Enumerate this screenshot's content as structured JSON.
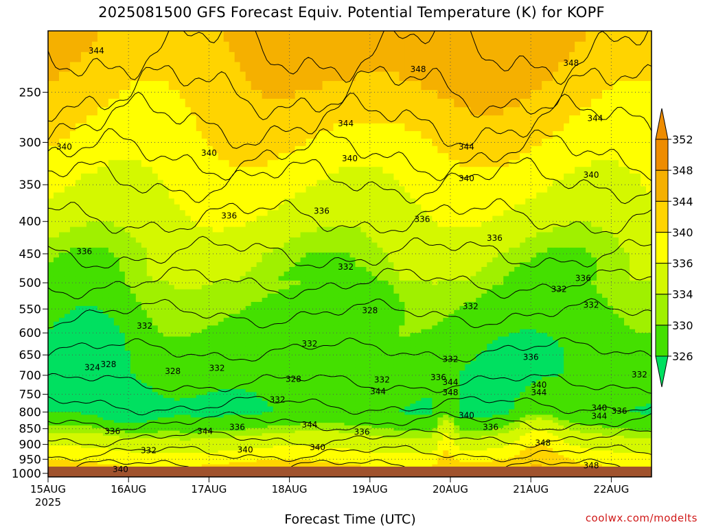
{
  "title": "2025081500 GFS Forecast Equiv. Potential Temperature (K) for KOPF",
  "credit": "coolwx.com/modelts",
  "chart_data": {
    "type": "heatmap",
    "title": "2025081500 GFS Forecast Equiv. Potential Temperature (K) for KOPF",
    "xlabel": "Forecast Time (UTC)",
    "ylabel": "",
    "x_ticks": [
      "15AUG",
      "16AUG",
      "17AUG",
      "18AUG",
      "19AUG",
      "20AUG",
      "21AUG",
      "22AUG"
    ],
    "x_year_label": "2025",
    "y_ticks": [
      250,
      300,
      350,
      400,
      450,
      500,
      550,
      600,
      650,
      700,
      750,
      800,
      850,
      900,
      950,
      1000
    ],
    "y_range_hPa": [
      200,
      1013
    ],
    "x_range_days": [
      0,
      7.5
    ],
    "grid": true,
    "colorbar": {
      "levels": [
        326,
        330,
        334,
        336,
        340,
        344,
        348,
        352
      ],
      "colors": [
        "#00e060",
        "#44e000",
        "#a0f000",
        "#d4f800",
        "#ffff00",
        "#ffd400",
        "#f5b000",
        "#ee8c00"
      ],
      "extend": "both"
    },
    "contour_labels": [
      {
        "text": "344",
        "t": 0.6,
        "p": 215
      },
      {
        "text": "348",
        "t": 4.6,
        "p": 230
      },
      {
        "text": "348",
        "t": 6.5,
        "p": 225
      },
      {
        "text": "344",
        "t": 3.7,
        "p": 280
      },
      {
        "text": "344",
        "t": 6.8,
        "p": 275
      },
      {
        "text": "344",
        "t": 5.2,
        "p": 305
      },
      {
        "text": "340",
        "t": 0.2,
        "p": 305
      },
      {
        "text": "340",
        "t": 2.0,
        "p": 312
      },
      {
        "text": "340",
        "t": 3.75,
        "p": 318
      },
      {
        "text": "340",
        "t": 5.2,
        "p": 342
      },
      {
        "text": "340",
        "t": 6.75,
        "p": 338
      },
      {
        "text": "336",
        "t": 2.25,
        "p": 392
      },
      {
        "text": "336",
        "t": 3.4,
        "p": 385
      },
      {
        "text": "336",
        "t": 4.65,
        "p": 397
      },
      {
        "text": "336",
        "t": 5.55,
        "p": 425
      },
      {
        "text": "336",
        "t": 0.45,
        "p": 446
      },
      {
        "text": "336",
        "t": 6.65,
        "p": 492
      },
      {
        "text": "332",
        "t": 3.7,
        "p": 472
      },
      {
        "text": "332",
        "t": 6.35,
        "p": 512
      },
      {
        "text": "332",
        "t": 6.75,
        "p": 542
      },
      {
        "text": "332",
        "t": 5.25,
        "p": 545
      },
      {
        "text": "332",
        "t": 1.2,
        "p": 585
      },
      {
        "text": "332",
        "t": 3.25,
        "p": 624
      },
      {
        "text": "332",
        "t": 5.0,
        "p": 660
      },
      {
        "text": "332",
        "t": 2.1,
        "p": 682
      },
      {
        "text": "332",
        "t": 7.35,
        "p": 698
      },
      {
        "text": "332",
        "t": 2.85,
        "p": 765
      },
      {
        "text": "332",
        "t": 4.15,
        "p": 712
      },
      {
        "text": "332",
        "t": 1.25,
        "p": 920
      },
      {
        "text": "328",
        "t": 4.0,
        "p": 553
      },
      {
        "text": "328",
        "t": 0.75,
        "p": 673
      },
      {
        "text": "328",
        "t": 1.55,
        "p": 690
      },
      {
        "text": "328",
        "t": 3.05,
        "p": 710
      },
      {
        "text": "324",
        "t": 0.55,
        "p": 680
      },
      {
        "text": "336",
        "t": 0.8,
        "p": 858
      },
      {
        "text": "336",
        "t": 2.35,
        "p": 845
      },
      {
        "text": "336",
        "t": 3.9,
        "p": 860
      },
      {
        "text": "336",
        "t": 4.85,
        "p": 705
      },
      {
        "text": "336",
        "t": 5.5,
        "p": 845
      },
      {
        "text": "336",
        "t": 7.1,
        "p": 797
      },
      {
        "text": "336",
        "t": 6.0,
        "p": 655
      },
      {
        "text": "344",
        "t": 1.95,
        "p": 858
      },
      {
        "text": "344",
        "t": 3.25,
        "p": 838
      },
      {
        "text": "344",
        "t": 5.0,
        "p": 718
      },
      {
        "text": "344",
        "t": 4.1,
        "p": 742
      },
      {
        "text": "344",
        "t": 6.1,
        "p": 745
      },
      {
        "text": "344",
        "t": 6.85,
        "p": 812
      },
      {
        "text": "348",
        "t": 5.0,
        "p": 745
      },
      {
        "text": "348",
        "t": 6.15,
        "p": 895
      },
      {
        "text": "348",
        "t": 6.75,
        "p": 972
      },
      {
        "text": "340",
        "t": 0.9,
        "p": 985
      },
      {
        "text": "340",
        "t": 2.45,
        "p": 918
      },
      {
        "text": "340",
        "t": 3.35,
        "p": 910
      },
      {
        "text": "340",
        "t": 5.2,
        "p": 810
      },
      {
        "text": "340",
        "t": 6.1,
        "p": 725
      },
      {
        "text": "340",
        "t": 6.85,
        "p": 788
      }
    ]
  }
}
